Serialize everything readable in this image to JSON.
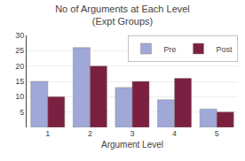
{
  "chart_data": {
    "type": "bar",
    "title": "No of Arguments at Each Level",
    "subtitle": "(Expt Groups)",
    "x_label": "Argument Level",
    "categories": [
      1,
      2,
      3,
      4,
      5
    ],
    "series": [
      {
        "name": "Pre",
        "color": "#a0a8d8",
        "values": [
          15,
          26,
          13,
          9,
          6
        ]
      },
      {
        "name": "Post",
        "color": "#7b2040",
        "values": [
          10,
          20,
          15,
          16,
          5
        ]
      }
    ],
    "ylim": [
      0,
      30
    ],
    "yticks": [
      5,
      10,
      15,
      20,
      25,
      30
    ],
    "grid": true,
    "legend": "upper right"
  }
}
